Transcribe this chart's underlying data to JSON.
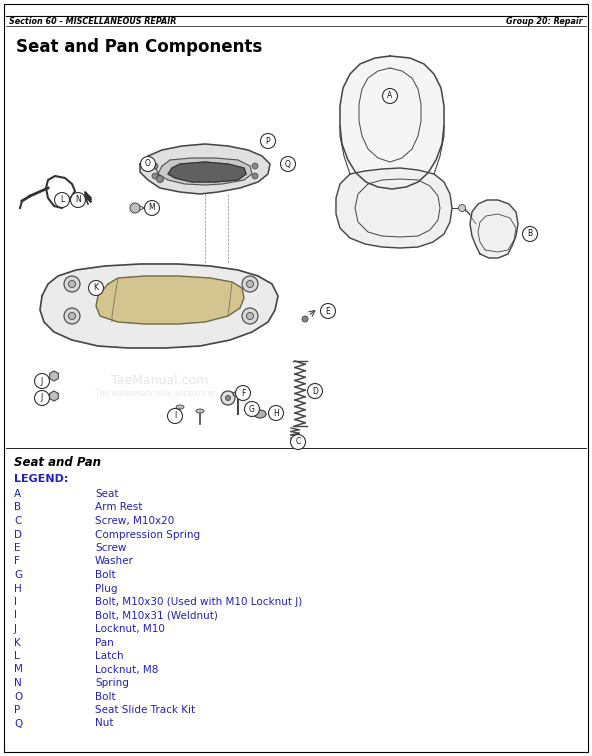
{
  "page_header_left": "Section 60 - MISCELLANEOUS REPAIR",
  "page_header_right": "Group 20: Repair",
  "title": "Seat and Pan Components",
  "section_title": "Seat and Pan",
  "legend_header": "LEGEND:",
  "legend_color": "#2222BB",
  "header_color": "#000000",
  "bg_color": "#FFFFFF",
  "legend_items": [
    [
      "A",
      "Seat"
    ],
    [
      "B",
      "Arm Rest"
    ],
    [
      "C",
      "Screw, M10x20"
    ],
    [
      "D",
      "Compression Spring"
    ],
    [
      "E",
      "Screw"
    ],
    [
      "F",
      "Washer"
    ],
    [
      "G",
      "Bolt"
    ],
    [
      "H",
      "Plug"
    ],
    [
      "I",
      "Bolt, M10x30 (Used with M10 Locknut J)"
    ],
    [
      "I",
      "Bolt, M10x31 (Weldnut)"
    ],
    [
      "J",
      "Locknut, M10"
    ],
    [
      "K",
      "Pan"
    ],
    [
      "L",
      "Latch"
    ],
    [
      "M",
      "Locknut, M8"
    ],
    [
      "N",
      "Spring"
    ],
    [
      "O",
      "Bolt"
    ],
    [
      "P",
      "Seat Slide Track Kit"
    ],
    [
      "Q",
      "Nut"
    ]
  ],
  "fig_width": 5.92,
  "fig_height": 7.56,
  "dpi": 100
}
